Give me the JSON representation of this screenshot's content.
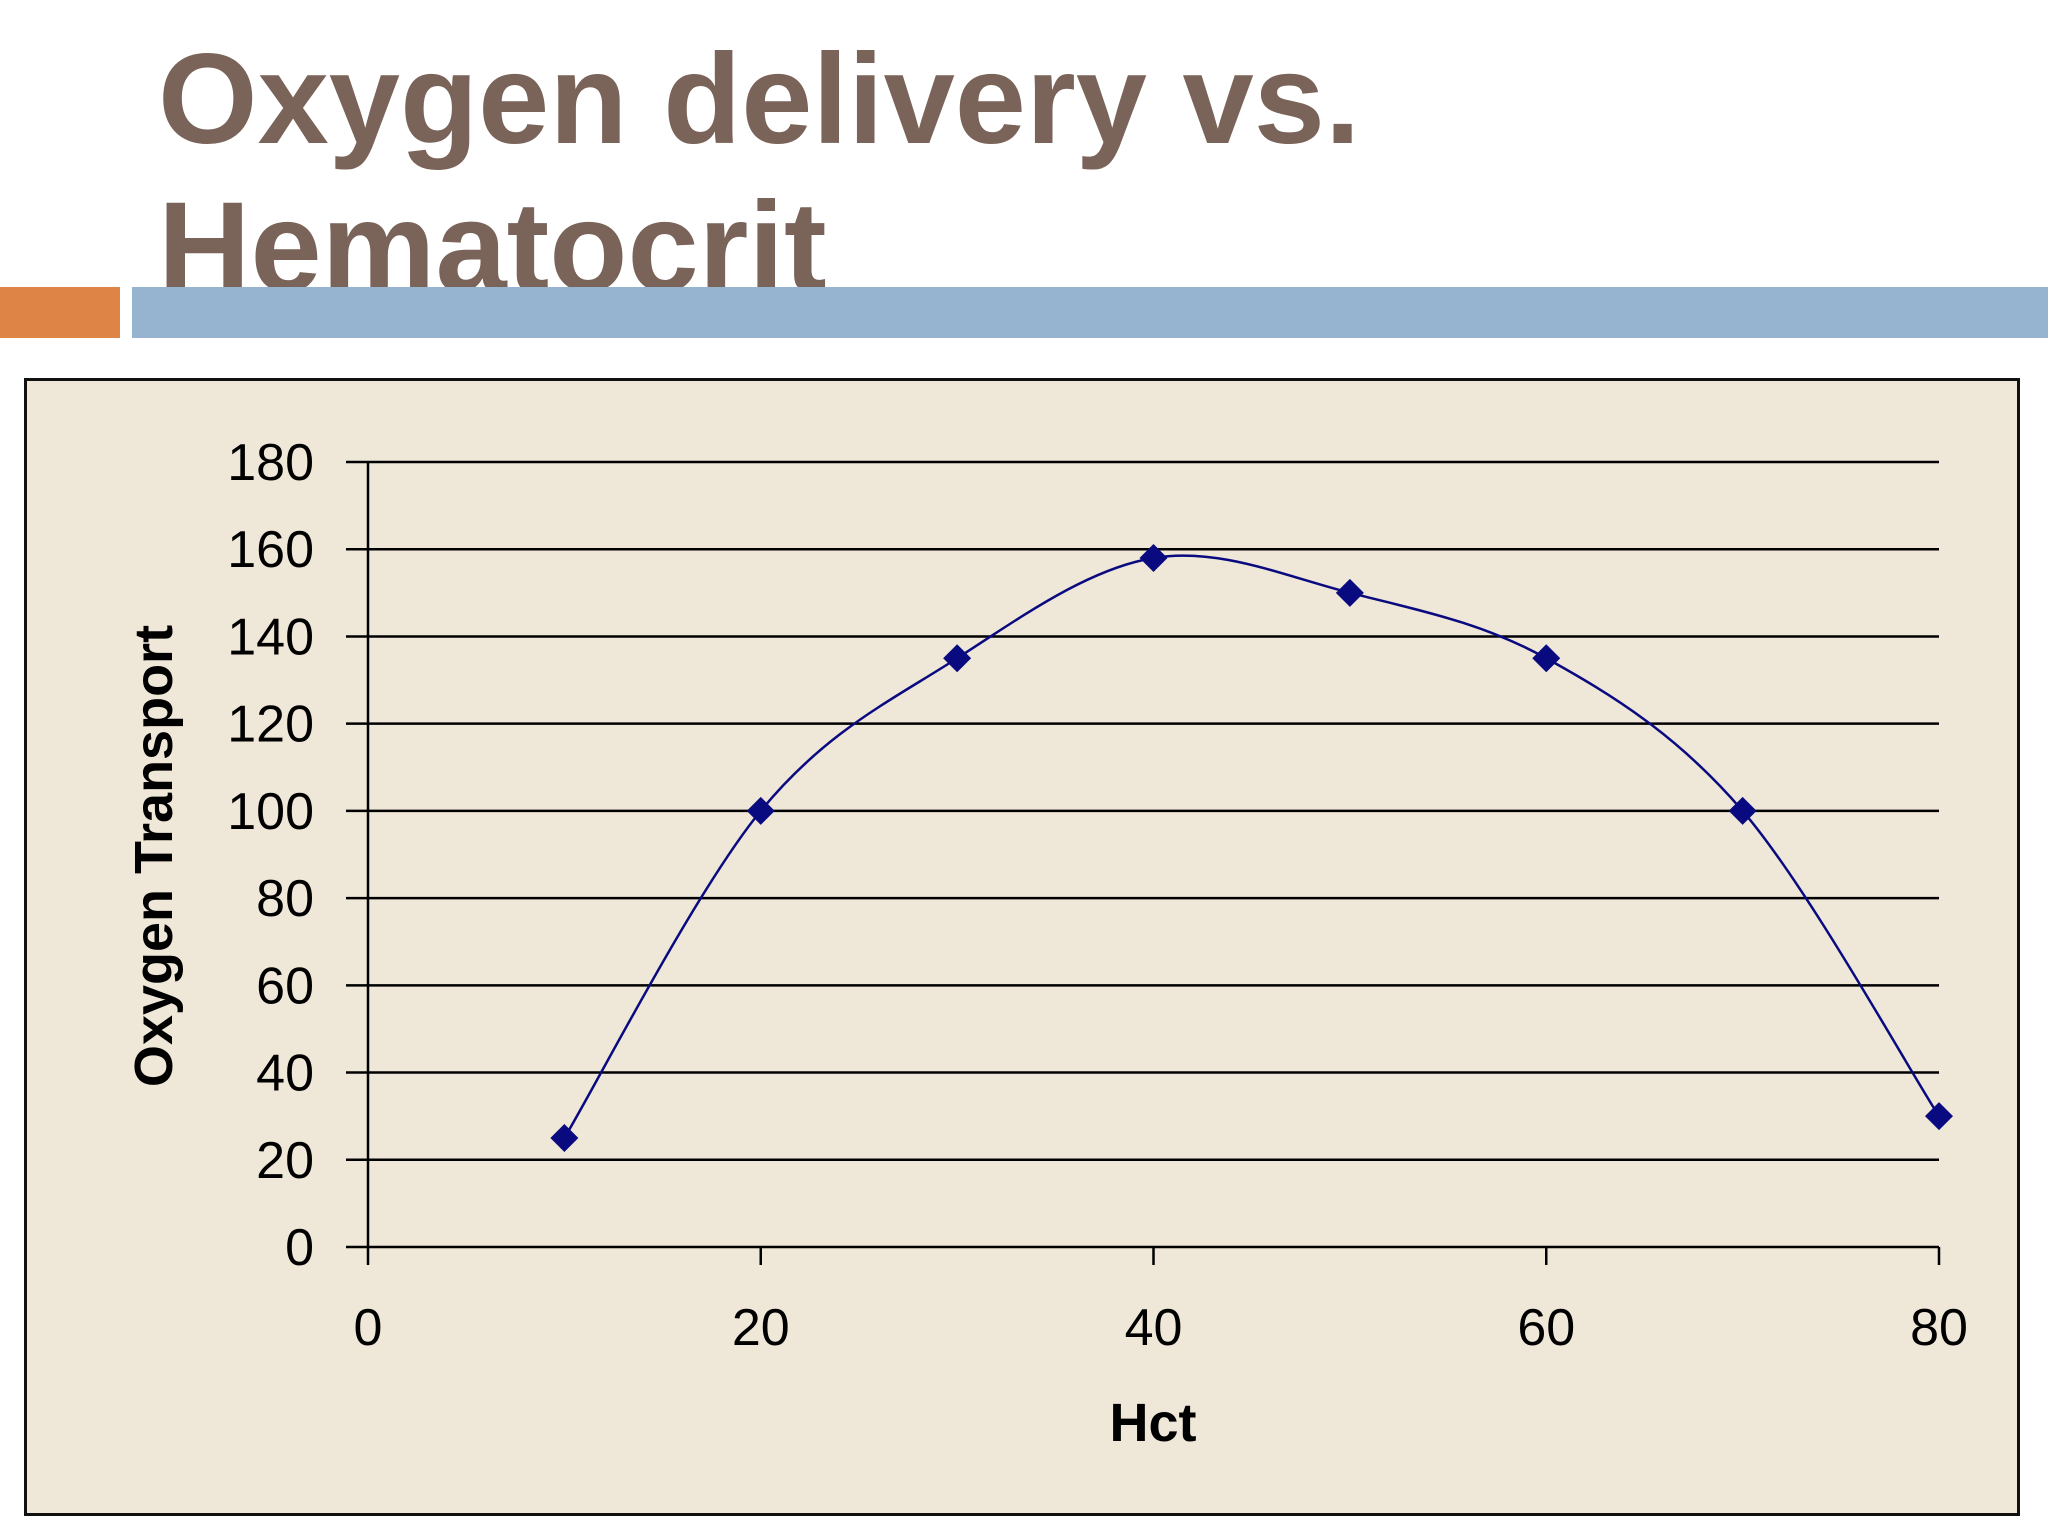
{
  "slide": {
    "title_line1": "Oxygen delivery vs.",
    "title_line2": "Hematocrit"
  },
  "colors": {
    "title": "#7a6358",
    "accent_orange": "#dd8446",
    "accent_blue": "#96b4cf",
    "plot_background": "#efe7d8",
    "series": "#0a0a80",
    "gridline": "#000000"
  },
  "chart_data": {
    "type": "scatter",
    "title": "",
    "xlabel": "Hct",
    "ylabel": "Oxygen Transport",
    "xlim": [
      0,
      80
    ],
    "ylim": [
      0,
      180
    ],
    "x_ticks": [
      0,
      20,
      40,
      60,
      80
    ],
    "y_ticks": [
      0,
      20,
      40,
      60,
      80,
      100,
      120,
      140,
      160,
      180
    ],
    "grid": "horizontal",
    "legend": "none",
    "marker": "diamond",
    "line": "smoothed",
    "series": [
      {
        "x": [
          10,
          20,
          30,
          40,
          50,
          60,
          70,
          80
        ],
        "y": [
          25,
          100,
          135,
          158,
          150,
          135,
          100,
          30
        ]
      }
    ]
  }
}
